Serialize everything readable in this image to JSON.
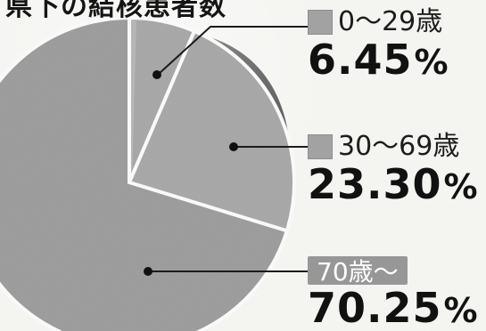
{
  "title": "県下の結核患者数",
  "chart_data": {
    "type": "pie",
    "slices": [
      {
        "label": "0〜29歳",
        "value": 6.45,
        "display": "6.45",
        "unit": "%"
      },
      {
        "label": "30〜69歳",
        "value": 23.3,
        "display": "23.30",
        "unit": "%"
      },
      {
        "label": "70歳〜",
        "value": 70.25,
        "display": "70.25",
        "unit": "%"
      }
    ],
    "colors": {
      "slice_fill": "#9c9c9c",
      "slice_fill_shadow": "#7e7e7e",
      "slice_border": "#ffffff",
      "pill_fill": "#979797",
      "pill_text": "#ffffff",
      "swatch_fill": "#a2a2a2"
    }
  }
}
